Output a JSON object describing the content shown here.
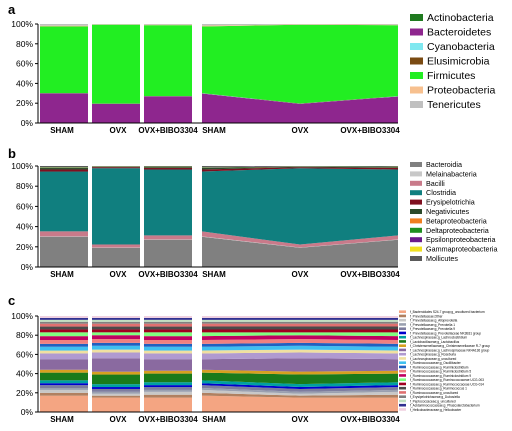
{
  "chart_data": [
    {
      "panel": "a",
      "type": "bar",
      "layout": "stacked-percent bars + stacked area",
      "categories": [
        "SHAM",
        "OVX",
        "OVX+BIBO3304"
      ],
      "y_ticks": [
        "0%",
        "20%",
        "40%",
        "60%",
        "80%",
        "100%"
      ],
      "ylim": [
        0,
        100
      ],
      "legend_position": "right",
      "series": [
        {
          "name": "Actinobacteria",
          "color": "#1f7a1f",
          "values": [
            0.3,
            0.3,
            0.3
          ]
        },
        {
          "name": "Bacteroidetes",
          "color": "#8e268e",
          "values": [
            29.5,
            19.0,
            26.5
          ]
        },
        {
          "name": "Cyanobacteria",
          "color": "#7fe8f0",
          "values": [
            0.2,
            0.2,
            0.2
          ]
        },
        {
          "name": "Elusimicrobia",
          "color": "#7a4a12",
          "values": [
            0.2,
            0.2,
            0.2
          ]
        },
        {
          "name": "Firmicutes",
          "color": "#22ee22",
          "values": [
            67.3,
            79.6,
            71.6
          ]
        },
        {
          "name": "Proteobacteria",
          "color": "#f7c08f",
          "values": [
            0.8,
            0.3,
            0.5
          ]
        },
        {
          "name": "Tenericutes",
          "color": "#c0c0c0",
          "values": [
            1.7,
            0.4,
            0.7
          ]
        }
      ]
    },
    {
      "panel": "b",
      "type": "bar",
      "layout": "stacked-percent bars + stacked area",
      "categories": [
        "SHAM",
        "OVX",
        "OVX+BIBO3304"
      ],
      "y_ticks": [
        "0%",
        "20%",
        "40%",
        "60%",
        "80%",
        "100%"
      ],
      "ylim": [
        0,
        100
      ],
      "legend_position": "right",
      "series": [
        {
          "name": "Bacteroidia",
          "color": "#808080",
          "values": [
            30,
            19,
            27
          ]
        },
        {
          "name": "Melainabacteria",
          "color": "#c8c8c8",
          "values": [
            0.3,
            0.3,
            0.3
          ]
        },
        {
          "name": "Bacilli",
          "color": "#c97a8a",
          "values": [
            5,
            3,
            4
          ]
        },
        {
          "name": "Clostridia",
          "color": "#107f7f",
          "values": [
            59.2,
            75.5,
            65.2
          ]
        },
        {
          "name": "Erysipelotrichia",
          "color": "#7f0f1f",
          "values": [
            2,
            1,
            1.5
          ]
        },
        {
          "name": "Negativicutes",
          "color": "#2b4a2b",
          "values": [
            1.5,
            0.5,
            0.8
          ]
        },
        {
          "name": "Betaproteobacteria",
          "color": "#f07f20",
          "values": [
            0.2,
            0.1,
            0.1
          ]
        },
        {
          "name": "Deltaproteobacteria",
          "color": "#1f8f1f",
          "values": [
            0.5,
            0.2,
            0.4
          ]
        },
        {
          "name": "Epsilonproteobacteria",
          "color": "#6a1a8a",
          "values": [
            0.2,
            0.1,
            0.1
          ]
        },
        {
          "name": "Gammaproteobacteria",
          "color": "#f0e020",
          "values": [
            0.1,
            0.1,
            0.1
          ]
        },
        {
          "name": "Mollicutes",
          "color": "#5a5a5a",
          "values": [
            1,
            0.2,
            0.5
          ]
        }
      ]
    },
    {
      "panel": "c",
      "type": "bar",
      "layout": "stacked-percent bars + stacked area",
      "categories": [
        "SHAM",
        "OVX",
        "OVX+BIBO3304"
      ],
      "y_ticks": [
        "0%",
        "20%",
        "40%",
        "60%",
        "80%",
        "100%"
      ],
      "ylim": [
        0,
        100
      ],
      "legend_position": "right",
      "series": [
        {
          "name": "f_Bacteroidales S24-7 group;g_uncultured bacterium",
          "color": "#f4a582",
          "values": [
            17,
            15,
            15
          ]
        },
        {
          "name": "f_Prevotellaceae;Other",
          "color": "#b08060",
          "values": [
            3,
            2,
            3
          ]
        },
        {
          "name": "f_Prevotellaceae;g_Alloprevotella",
          "color": "#c8c8c8",
          "values": [
            3,
            2,
            3
          ]
        },
        {
          "name": "f_Prevotellaceae;g_Prevotella 1",
          "color": "#9aa0b0",
          "values": [
            2,
            2,
            2
          ]
        },
        {
          "name": "f_Prevotellaceae;g_Prevotella 9",
          "color": "#7d7d9f",
          "values": [
            3,
            3,
            3
          ]
        },
        {
          "name": "f_Prevotellaceae;g_Prevotellaceae NK3B31 group",
          "color": "#0000cc",
          "values": [
            2,
            2,
            2
          ]
        },
        {
          "name": "f_Lachnospiraceae;g_Lachnoclostridium",
          "color": "#00a0a0",
          "values": [
            3,
            3,
            3
          ]
        },
        {
          "name": "f_Lactobacillaceae;g_Lactobacillus",
          "color": "#1a7a1a",
          "values": [
            8,
            10,
            9
          ]
        },
        {
          "name": "f_Christensenellaceae;g_Christensenellaceae R-7 group",
          "color": "#d7a020",
          "values": [
            3,
            3,
            3
          ]
        },
        {
          "name": "f_Lachnospiraceae;g_Lachnospiraceae NK4A136 group",
          "color": "#8a6aa0",
          "values": [
            11,
            14,
            12
          ]
        },
        {
          "name": "f_Lachnospiraceae;g_Roseburia",
          "color": "#b09ad0",
          "values": [
            6,
            6,
            6
          ]
        },
        {
          "name": "f_Lachnospiraceae;g_uncultured",
          "color": "#f0e0a0",
          "values": [
            3,
            3,
            3
          ]
        },
        {
          "name": "f_Ruminococcaceae;g_Oscillibacter",
          "color": "#40c0f0",
          "values": [
            4,
            4,
            4
          ]
        },
        {
          "name": "f_Ruminococcaceae;g_Ruminiclostridium",
          "color": "#2060c0",
          "values": [
            3,
            3,
            3
          ]
        },
        {
          "name": "f_Ruminococcaceae;g_Ruminiclostridium 5",
          "color": "#f08080",
          "values": [
            4,
            4,
            4
          ]
        },
        {
          "name": "f_Ruminococcaceae;g_Ruminiclostridium 9",
          "color": "#c00060",
          "values": [
            4,
            4,
            4
          ]
        },
        {
          "name": "f_Ruminococcaceae;g_Ruminococcaceae UCG-003",
          "color": "#80ff80",
          "values": [
            4,
            3,
            4
          ]
        },
        {
          "name": "f_Ruminococcaceae;g_Ruminococcaceae UCG-014",
          "color": "#a00020",
          "values": [
            3,
            3,
            3
          ]
        },
        {
          "name": "f_Ruminococcaceae;g_Ruminococcus 1",
          "color": "#4a4a4a",
          "values": [
            3,
            3,
            3
          ]
        },
        {
          "name": "f_Ruminococcaceae;g_uncultured",
          "color": "#e07070",
          "values": [
            3,
            3,
            3
          ]
        },
        {
          "name": "f_Erysipelotrichaceae;g_Dubosiella",
          "color": "#808080",
          "values": [
            2,
            2,
            2
          ]
        },
        {
          "name": "f_Peptococcaceae;g_uncultured",
          "color": "#c0e0c0",
          "values": [
            2,
            2,
            2
          ]
        },
        {
          "name": "f_Acidaminococcaceae;g_Phascolarctobacterium",
          "color": "#303090",
          "values": [
            2,
            2,
            2
          ]
        },
        {
          "name": "f_Helicobacteraceae;g_Helicobacter",
          "color": "#f0d0e0",
          "values": [
            2,
            2,
            2
          ]
        }
      ]
    }
  ]
}
